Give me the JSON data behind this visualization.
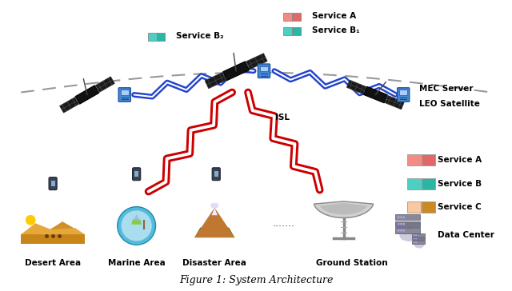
{
  "title": "Figure 1: System Architecture",
  "bg_color": "#ffffff",
  "service_a_colors": [
    "#f28b82",
    "#e06868"
  ],
  "service_b_colors": [
    "#4dd0c4",
    "#2ab5a5"
  ],
  "service_c_colors": [
    "#f8c8a0",
    "#cc8822"
  ],
  "isl_color": "#2244cc",
  "link_color": "#dd1111",
  "dashed_color": "#888888",
  "labels": {
    "service_a": "Service A",
    "service_b1": "Service B₁",
    "service_b2": "Service B₂",
    "isl": "ISL",
    "mec": "MEC Server",
    "leo": "LEO Satellite",
    "desert": "Desert Area",
    "marine": "Marine Area",
    "disaster": "Disaster Area",
    "ground": "Ground Station",
    "data_center": "Data Center",
    "legend_a": "Service A",
    "legend_b": "Service B",
    "legend_c": "Service C",
    "title": "Figure 1: System Architecture"
  }
}
